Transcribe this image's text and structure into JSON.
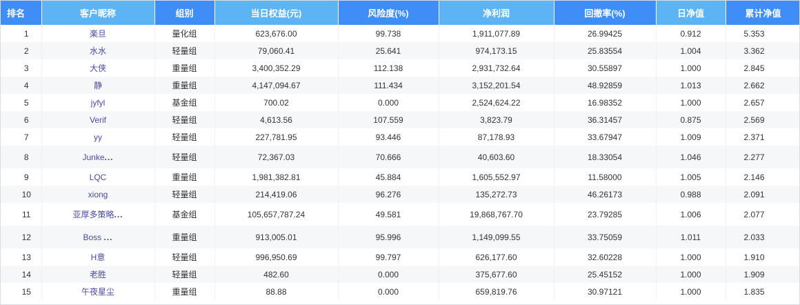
{
  "headers": {
    "rank": "排名",
    "nickname": "客户昵称",
    "group": "组别",
    "equity": "当日权益(元)",
    "risk": "风险度(%)",
    "profit": "净利润",
    "drawdown": "回撤率(%)",
    "daily_nav": "日净值",
    "cum_nav": "累计净值"
  },
  "colors": {
    "header_dark": "#3f8ef7",
    "header_light": "#5db4f5",
    "row_alt": "#f6f7f8",
    "name_text": "#4a4aa0"
  },
  "rows": [
    {
      "rank": "1",
      "nickname": "楽旦",
      "group": "量化组",
      "equity": "623,676.00",
      "risk": "99.738",
      "profit": "1,911,077.89",
      "drawdown": "26.99425",
      "daily_nav": "0.912",
      "cum_nav": "5.353"
    },
    {
      "rank": "2",
      "nickname": "水水",
      "group": "轻量组",
      "equity": "79,060.41",
      "risk": "25.641",
      "profit": "974,173.15",
      "drawdown": "25.83554",
      "daily_nav": "1.004",
      "cum_nav": "3.362"
    },
    {
      "rank": "3",
      "nickname": "大侠",
      "group": "重量组",
      "equity": "3,400,352.29",
      "risk": "112.138",
      "profit": "2,931,732.64",
      "drawdown": "30.55897",
      "daily_nav": "1.000",
      "cum_nav": "2.845"
    },
    {
      "rank": "4",
      "nickname": "静",
      "group": "重量组",
      "equity": "4,147,094.67",
      "risk": "111.434",
      "profit": "3,152,201.54",
      "drawdown": "48.92859",
      "daily_nav": "1.013",
      "cum_nav": "2.662"
    },
    {
      "rank": "5",
      "nickname": "jyfyl",
      "group": "基金组",
      "equity": "700.02",
      "risk": "0.000",
      "profit": "2,524,624.22",
      "drawdown": "16.98352",
      "daily_nav": "1.000",
      "cum_nav": "2.657"
    },
    {
      "rank": "6",
      "nickname": "Verif",
      "group": "轻量组",
      "equity": "4,613.56",
      "risk": "107.559",
      "profit": "3,823.79",
      "drawdown": "36.31457",
      "daily_nav": "0.875",
      "cum_nav": "2.569"
    },
    {
      "rank": "7",
      "nickname": "yy",
      "group": "轻量组",
      "equity": "227,781.95",
      "risk": "93.446",
      "profit": "87,178.93",
      "drawdown": "33.67947",
      "daily_nav": "1.009",
      "cum_nav": "2.371"
    },
    {
      "rank": "8",
      "nickname": "Junke",
      "truncated": true,
      "group": "轻量组",
      "equity": "72,367.03",
      "risk": "70.666",
      "profit": "40,603.60",
      "drawdown": "18.33054",
      "daily_nav": "1.046",
      "cum_nav": "2.277"
    },
    {
      "rank": "9",
      "nickname": "LQC",
      "group": "重量组",
      "equity": "1,981,382.81",
      "risk": "45.884",
      "profit": "1,605,552.97",
      "drawdown": "11.58000",
      "daily_nav": "1.005",
      "cum_nav": "2.146"
    },
    {
      "rank": "10",
      "nickname": "xiong",
      "group": "轻量组",
      "equity": "214,419.06",
      "risk": "96.276",
      "profit": "135,272.73",
      "drawdown": "46.26173",
      "daily_nav": "0.988",
      "cum_nav": "2.091"
    },
    {
      "rank": "11",
      "nickname": "亚厚多策略",
      "truncated": true,
      "group": "基金组",
      "equity": "105,657,787.24",
      "risk": "49.581",
      "profit": "19,868,767.70",
      "drawdown": "23.79285",
      "daily_nav": "1.006",
      "cum_nav": "2.077"
    },
    {
      "rank": "12",
      "nickname": "Boss ",
      "truncated": true,
      "group": "重量组",
      "equity": "913,005.01",
      "risk": "95.996",
      "profit": "1,149,099.55",
      "drawdown": "33.75059",
      "daily_nav": "1.011",
      "cum_nav": "2.033"
    },
    {
      "rank": "13",
      "nickname": "H意",
      "group": "轻量组",
      "equity": "996,950.69",
      "risk": "99.797",
      "profit": "626,177.60",
      "drawdown": "32.60228",
      "daily_nav": "1.000",
      "cum_nav": "1.910"
    },
    {
      "rank": "14",
      "nickname": "老胜",
      "group": "轻量组",
      "equity": "482.60",
      "risk": "0.000",
      "profit": "375,677.60",
      "drawdown": "25.45152",
      "daily_nav": "1.000",
      "cum_nav": "1.909"
    },
    {
      "rank": "15",
      "nickname": "午夜星尘",
      "group": "重量组",
      "equity": "88.88",
      "risk": "0.000",
      "profit": "659,819.76",
      "drawdown": "30.97121",
      "daily_nav": "1.000",
      "cum_nav": "1.835"
    }
  ]
}
